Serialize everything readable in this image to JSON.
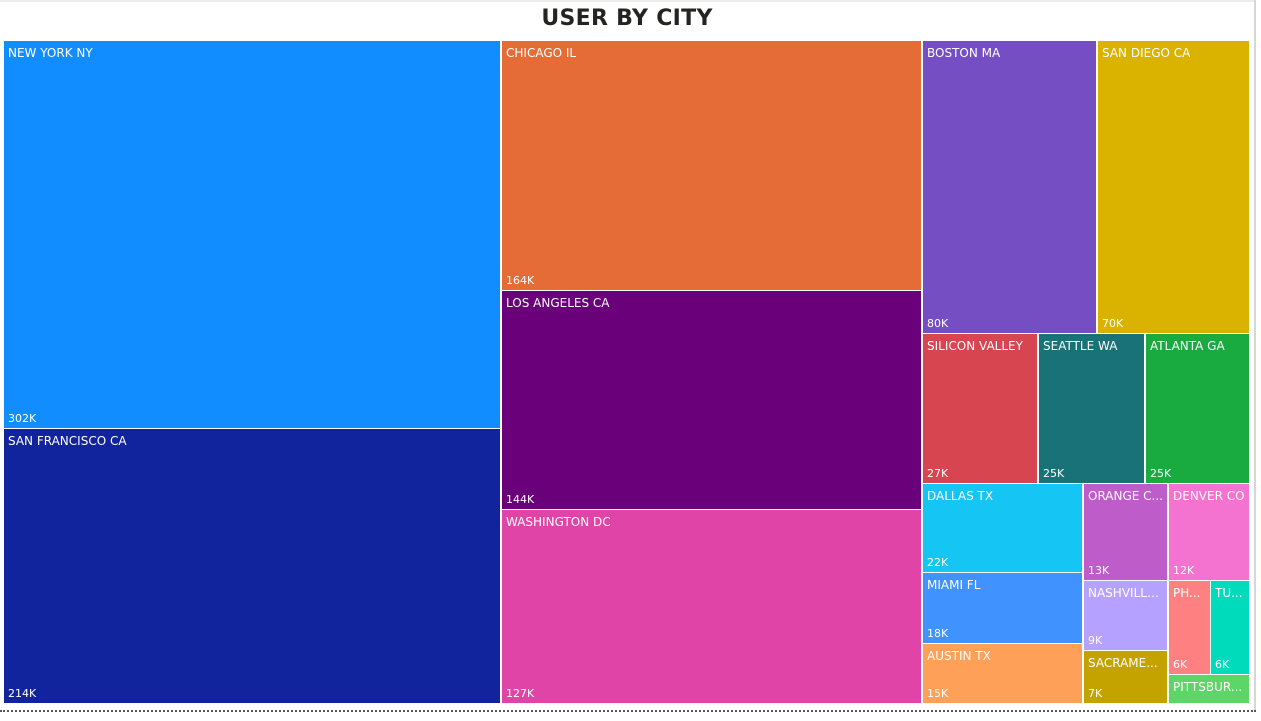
{
  "chart_data": {
    "type": "treemap",
    "title": "USER BY CITY",
    "items": [
      {
        "name": "NEW YORK NY",
        "label": "302K",
        "value": 302,
        "color": "#118DFF"
      },
      {
        "name": "SAN FRANCISCO CA",
        "label": "214K",
        "value": 214,
        "color": "#12239E"
      },
      {
        "name": "CHICAGO IL",
        "label": "164K",
        "value": 164,
        "color": "#E66C37"
      },
      {
        "name": "LOS ANGELES CA",
        "label": "144K",
        "value": 144,
        "color": "#6B007B"
      },
      {
        "name": "WASHINGTON DC",
        "label": "127K",
        "value": 127,
        "color": "#E044A7"
      },
      {
        "name": "BOSTON MA",
        "label": "80K",
        "value": 80,
        "color": "#744EC2"
      },
      {
        "name": "SAN DIEGO CA",
        "label": "70K",
        "value": 70,
        "color": "#D9B300"
      },
      {
        "name": "SILICON VALLEY",
        "label": "27K",
        "value": 27,
        "color": "#D64550"
      },
      {
        "name": "SEATTLE WA",
        "label": "25K",
        "value": 25,
        "color": "#197278"
      },
      {
        "name": "ATLANTA GA",
        "label": "25K",
        "value": 25,
        "color": "#1AAB40"
      },
      {
        "name": "DALLAS TX",
        "label": "22K",
        "value": 22,
        "color": "#15C6F4"
      },
      {
        "name": "MIAMI FL",
        "label": "18K",
        "value": 18,
        "color": "#4092FF"
      },
      {
        "name": "AUSTIN TX",
        "label": "15K",
        "value": 15,
        "color": "#FFA058"
      },
      {
        "name": "ORANGE C...",
        "label": "13K",
        "value": 13,
        "color": "#BE5DC9"
      },
      {
        "name": "DENVER CO",
        "label": "12K",
        "value": 12,
        "color": "#F472D0"
      },
      {
        "name": "NASHVILLE...",
        "label": "9K",
        "value": 9,
        "color": "#B5A1FF"
      },
      {
        "name": "SACRAME...",
        "label": "7K",
        "value": 7,
        "color": "#C4A200"
      },
      {
        "name": "PH...",
        "label": "6K",
        "value": 6,
        "color": "#FF8080"
      },
      {
        "name": "TU...",
        "label": "6K",
        "value": 6,
        "color": "#00DBBC"
      },
      {
        "name": "PITTSBUR...",
        "label": "",
        "value": 4,
        "color": "#5BD667"
      }
    ]
  }
}
